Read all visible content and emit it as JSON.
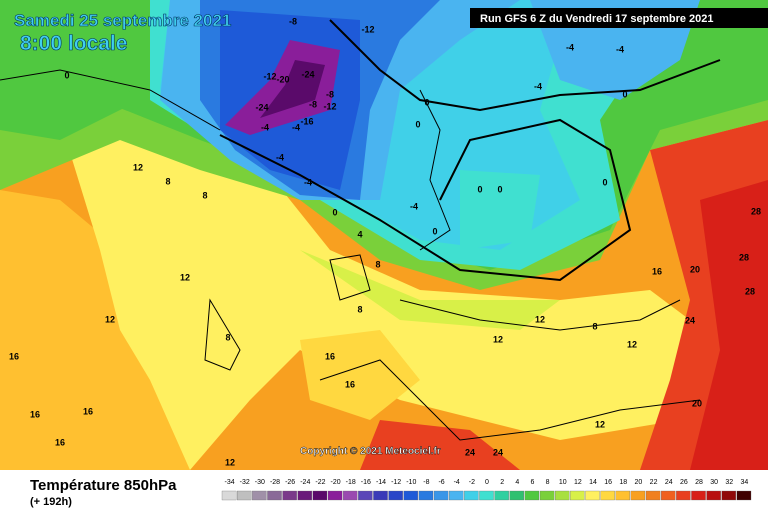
{
  "header": {
    "date": "Samedi 25 septembre 2021",
    "time": "8:00 locale",
    "run": "Run GFS 6 Z du Vendredi 17 septembre 2021"
  },
  "copyright": "Copyright © 2021 Meteociel.fr",
  "footer": {
    "title": "Température 850hPa",
    "lead": "(+ 192h)"
  },
  "legend": {
    "values": [
      -34,
      -32,
      -30,
      -28,
      -26,
      -24,
      -22,
      -20,
      -18,
      -16,
      -14,
      -12,
      -10,
      -8,
      -6,
      -4,
      -2,
      0,
      2,
      4,
      6,
      8,
      10,
      12,
      14,
      16,
      18,
      20,
      22,
      24,
      26,
      28,
      30,
      32,
      34
    ],
    "colors": [
      "#d9d9d9",
      "#bfbfbf",
      "#a090a8",
      "#8a6a98",
      "#7a3a8a",
      "#6a1a7a",
      "#5a0a6a",
      "#8a1e9a",
      "#9a4ab0",
      "#5a46b8",
      "#3a3ab8",
      "#2a46c8",
      "#1e5ad8",
      "#2a7ae0",
      "#3a96e8",
      "#4ab4f0",
      "#40d0e8",
      "#40e0d0",
      "#30d0a0",
      "#30c070",
      "#50c840",
      "#7ad03a",
      "#a8e040",
      "#d8f048",
      "#fff060",
      "#ffd840",
      "#ffc030",
      "#f8a020",
      "#f08020",
      "#f06020",
      "#e84020",
      "#d82018",
      "#b81010",
      "#900808",
      "#400000"
    ]
  },
  "contour_labels": [
    -8,
    -12,
    -12,
    -20,
    -24,
    -24,
    -8,
    -12,
    -8,
    -16,
    -4,
    -4,
    -4,
    -4,
    0,
    0,
    0,
    0,
    -4,
    0,
    0,
    -4,
    -4,
    0,
    -4,
    0,
    12,
    8,
    8,
    12,
    12,
    8,
    16,
    16,
    16,
    16,
    12,
    16,
    16,
    24,
    24,
    12,
    8,
    12,
    12,
    16,
    20,
    24,
    28,
    28,
    28,
    20,
    8,
    12,
    4,
    8,
    0
  ]
}
